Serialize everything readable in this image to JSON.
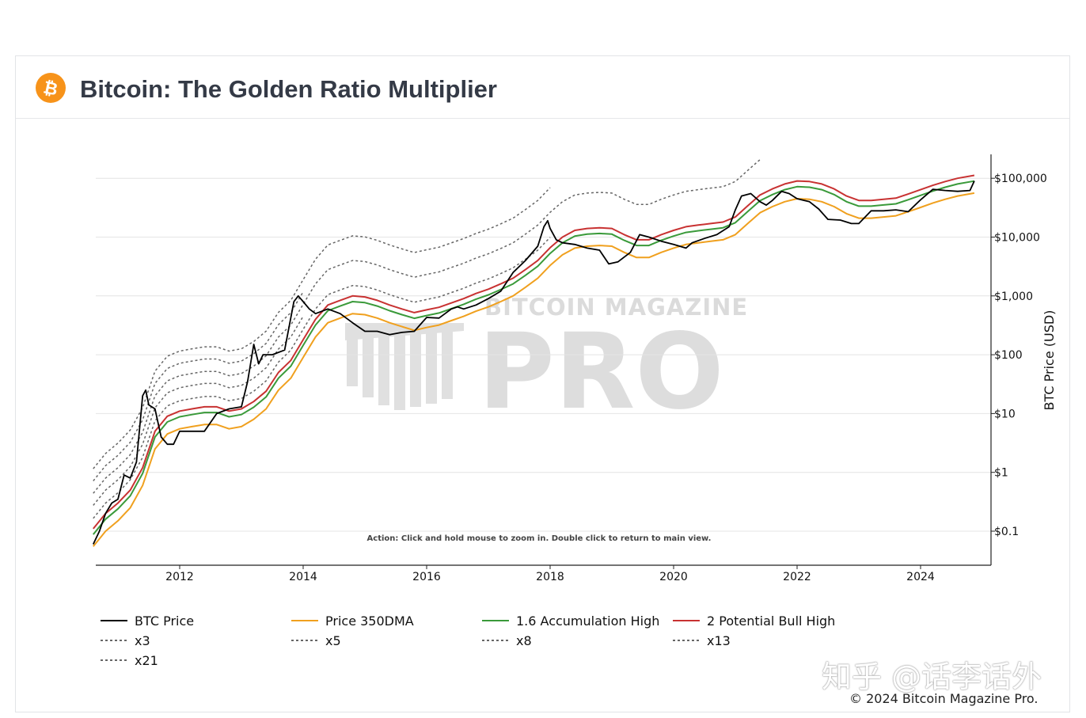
{
  "header": {
    "title": "Bitcoin: The Golden Ratio Multiplier",
    "logo_icon": "bitcoin-logo-icon",
    "logo_color": "#f7931a"
  },
  "hint": "Action: Click and hold mouse to zoom in.  Double click to return to main view.",
  "watermark": {
    "small": "BITCOIN MAGAZINE",
    "big": "PRO"
  },
  "footer": {
    "zhihu": "知乎 @话李话外",
    "copyright": "© 2024 Bitcoin Magazine Pro."
  },
  "chart_data": {
    "type": "line",
    "title": "Bitcoin: The Golden Ratio Multiplier",
    "ylabel": "BTC Price (USD)",
    "xlabel": "",
    "yscale": "log",
    "ylim": [
      0.035,
      300000
    ],
    "xlim": [
      2010.6,
      2024.92
    ],
    "y_ticks": [
      {
        "value": 0.1,
        "label": "$0.1"
      },
      {
        "value": 1,
        "label": "$1"
      },
      {
        "value": 10,
        "label": "$10"
      },
      {
        "value": 100,
        "label": "$100"
      },
      {
        "value": 1000,
        "label": "$1,000"
      },
      {
        "value": 10000,
        "label": "$10,000"
      },
      {
        "value": 100000,
        "label": "$100,000"
      }
    ],
    "x_ticks": [
      {
        "value": 2012,
        "label": "2012"
      },
      {
        "value": 2014,
        "label": "2014"
      },
      {
        "value": 2016,
        "label": "2016"
      },
      {
        "value": 2018,
        "label": "2018"
      },
      {
        "value": 2020,
        "label": "2020"
      },
      {
        "value": 2022,
        "label": "2022"
      },
      {
        "value": 2024,
        "label": "2024"
      }
    ],
    "grid": "horizontal",
    "legend_position": "bottom",
    "series": [
      {
        "name": "BTC Price",
        "color": "#000000",
        "dash": "solid",
        "x": [
          2010.6,
          2010.7,
          2010.8,
          2010.9,
          2011.0,
          2011.1,
          2011.2,
          2011.3,
          2011.4,
          2011.45,
          2011.5,
          2011.6,
          2011.7,
          2011.8,
          2011.9,
          2012.0,
          2012.2,
          2012.4,
          2012.6,
          2012.8,
          2013.0,
          2013.1,
          2013.2,
          2013.28,
          2013.35,
          2013.5,
          2013.7,
          2013.85,
          2013.92,
          2014.0,
          2014.1,
          2014.2,
          2014.4,
          2014.6,
          2014.8,
          2015.0,
          2015.2,
          2015.4,
          2015.6,
          2015.8,
          2016.0,
          2016.2,
          2016.4,
          2016.5,
          2016.6,
          2016.8,
          2017.0,
          2017.2,
          2017.4,
          2017.6,
          2017.8,
          2017.9,
          2017.96,
          2018.0,
          2018.1,
          2018.2,
          2018.4,
          2018.6,
          2018.8,
          2018.95,
          2019.1,
          2019.3,
          2019.45,
          2019.6,
          2019.8,
          2020.0,
          2020.2,
          2020.3,
          2020.5,
          2020.7,
          2020.9,
          2021.0,
          2021.1,
          2021.25,
          2021.4,
          2021.5,
          2021.6,
          2021.75,
          2021.87,
          2022.0,
          2022.2,
          2022.35,
          2022.5,
          2022.7,
          2022.88,
          2023.0,
          2023.2,
          2023.4,
          2023.6,
          2023.8,
          2024.0,
          2024.2,
          2024.4,
          2024.6,
          2024.8,
          2024.87
        ],
        "y": [
          0.06,
          0.1,
          0.2,
          0.3,
          0.35,
          0.9,
          0.8,
          1.5,
          20,
          25,
          14,
          12,
          4,
          3,
          3,
          5,
          5,
          5,
          10,
          12,
          13,
          35,
          150,
          70,
          100,
          100,
          120,
          800,
          1000,
          800,
          600,
          500,
          600,
          500,
          350,
          250,
          250,
          220,
          240,
          250,
          430,
          420,
          600,
          650,
          600,
          700,
          900,
          1200,
          2500,
          4000,
          7000,
          15000,
          19000,
          14000,
          9000,
          8000,
          7500,
          6500,
          6000,
          3500,
          3800,
          5500,
          11000,
          10000,
          8500,
          7500,
          6500,
          8000,
          9500,
          11000,
          15000,
          29000,
          50000,
          55000,
          40000,
          35000,
          42000,
          60000,
          55000,
          45000,
          40000,
          30000,
          20000,
          19500,
          17000,
          17000,
          28000,
          28000,
          29000,
          27000,
          43000,
          65000,
          62000,
          60000,
          62000,
          90000
        ]
      },
      {
        "name": "Price 350DMA",
        "color": "#f0a01e",
        "dash": "solid",
        "x": [
          2010.6,
          2010.8,
          2011.0,
          2011.2,
          2011.4,
          2011.6,
          2011.8,
          2012.0,
          2012.2,
          2012.4,
          2012.6,
          2012.8,
          2013.0,
          2013.2,
          2013.4,
          2013.6,
          2013.8,
          2014.0,
          2014.2,
          2014.4,
          2014.6,
          2014.8,
          2015.0,
          2015.2,
          2015.4,
          2015.6,
          2015.8,
          2016.0,
          2016.2,
          2016.4,
          2016.6,
          2016.8,
          2017.0,
          2017.2,
          2017.4,
          2017.6,
          2017.8,
          2018.0,
          2018.2,
          2018.4,
          2018.6,
          2018.8,
          2019.0,
          2019.2,
          2019.4,
          2019.6,
          2019.8,
          2020.0,
          2020.2,
          2020.4,
          2020.6,
          2020.8,
          2021.0,
          2021.2,
          2021.4,
          2021.6,
          2021.8,
          2022.0,
          2022.2,
          2022.4,
          2022.6,
          2022.8,
          2023.0,
          2023.2,
          2023.4,
          2023.6,
          2023.8,
          2024.0,
          2024.2,
          2024.4,
          2024.6,
          2024.87
        ],
        "y": [
          0.055,
          0.1,
          0.15,
          0.25,
          0.6,
          2.5,
          4.5,
          5.5,
          6,
          6.5,
          6.5,
          5.5,
          6,
          8,
          12,
          25,
          40,
          90,
          200,
          350,
          420,
          500,
          480,
          420,
          350,
          300,
          260,
          290,
          320,
          380,
          450,
          550,
          650,
          800,
          1000,
          1400,
          2000,
          3300,
          5000,
          6500,
          7000,
          7200,
          7000,
          5500,
          4500,
          4500,
          5500,
          6500,
          7500,
          8000,
          8500,
          9000,
          11000,
          17000,
          26000,
          33000,
          40000,
          45000,
          44000,
          40000,
          33000,
          25000,
          21000,
          21000,
          22000,
          23000,
          27000,
          32000,
          38000,
          44000,
          50000,
          56000
        ]
      },
      {
        "name": "1.6 Accumulation High",
        "color": "#3a9a3a",
        "dash": "solid",
        "x": [
          2010.6,
          2010.8,
          2011.0,
          2011.2,
          2011.4,
          2011.6,
          2011.8,
          2012.0,
          2012.2,
          2012.4,
          2012.6,
          2012.8,
          2013.0,
          2013.2,
          2013.4,
          2013.6,
          2013.8,
          2014.0,
          2014.2,
          2014.4,
          2014.6,
          2014.8,
          2015.0,
          2015.2,
          2015.4,
          2015.6,
          2015.8,
          2016.0,
          2016.2,
          2016.4,
          2016.6,
          2016.8,
          2017.0,
          2017.2,
          2017.4,
          2017.6,
          2017.8,
          2018.0,
          2018.2,
          2018.4,
          2018.6,
          2018.8,
          2019.0,
          2019.2,
          2019.4,
          2019.6,
          2019.8,
          2020.0,
          2020.2,
          2020.4,
          2020.6,
          2020.8,
          2021.0,
          2021.2,
          2021.4,
          2021.6,
          2021.8,
          2022.0,
          2022.2,
          2022.4,
          2022.6,
          2022.8,
          2023.0,
          2023.2,
          2023.4,
          2023.6,
          2023.8,
          2024.0,
          2024.2,
          2024.4,
          2024.6,
          2024.87
        ],
        "y": [
          0.088,
          0.16,
          0.24,
          0.4,
          0.96,
          4,
          7.2,
          8.8,
          9.6,
          10.4,
          10.4,
          8.8,
          9.6,
          12.8,
          19.2,
          40,
          64,
          144,
          320,
          560,
          672,
          800,
          768,
          672,
          560,
          480,
          416,
          464,
          512,
          608,
          720,
          880,
          1040,
          1280,
          1600,
          2240,
          3200,
          5280,
          8000,
          10400,
          11200,
          11520,
          11200,
          8800,
          7200,
          7200,
          8800,
          10400,
          12000,
          12800,
          13600,
          14400,
          17600,
          27200,
          41600,
          52800,
          64000,
          72000,
          70400,
          64000,
          52800,
          40000,
          33600,
          33600,
          35200,
          36800,
          43200,
          51200,
          60800,
          70400,
          80000,
          89600
        ]
      },
      {
        "name": "2 Potential Bull High",
        "color": "#c83232",
        "dash": "solid",
        "x": [
          2010.6,
          2010.8,
          2011.0,
          2011.2,
          2011.4,
          2011.6,
          2011.8,
          2012.0,
          2012.2,
          2012.4,
          2012.6,
          2012.8,
          2013.0,
          2013.2,
          2013.4,
          2013.6,
          2013.8,
          2014.0,
          2014.2,
          2014.4,
          2014.6,
          2014.8,
          2015.0,
          2015.2,
          2015.4,
          2015.6,
          2015.8,
          2016.0,
          2016.2,
          2016.4,
          2016.6,
          2016.8,
          2017.0,
          2017.2,
          2017.4,
          2017.6,
          2017.8,
          2018.0,
          2018.2,
          2018.4,
          2018.6,
          2018.8,
          2019.0,
          2019.2,
          2019.4,
          2019.6,
          2019.8,
          2020.0,
          2020.2,
          2020.4,
          2020.6,
          2020.8,
          2021.0,
          2021.2,
          2021.4,
          2021.6,
          2021.8,
          2022.0,
          2022.2,
          2022.4,
          2022.6,
          2022.8,
          2023.0,
          2023.2,
          2023.4,
          2023.6,
          2023.8,
          2024.0,
          2024.2,
          2024.4,
          2024.6,
          2024.87
        ],
        "y": [
          0.11,
          0.2,
          0.3,
          0.5,
          1.2,
          5,
          9,
          11,
          12,
          13,
          13,
          11,
          12,
          16,
          24,
          50,
          80,
          180,
          400,
          700,
          840,
          1000,
          960,
          840,
          700,
          600,
          520,
          580,
          640,
          760,
          900,
          1100,
          1300,
          1600,
          2000,
          2800,
          4000,
          6600,
          10000,
          13000,
          14000,
          14400,
          14000,
          11000,
          9000,
          9000,
          11000,
          13000,
          15000,
          16000,
          17000,
          18000,
          22000,
          34000,
          52000,
          66000,
          80000,
          90000,
          88000,
          80000,
          66000,
          50000,
          42000,
          42000,
          44000,
          46000,
          54000,
          64000,
          76000,
          88000,
          100000,
          112000
        ]
      },
      {
        "name": "x3",
        "color": "#666666",
        "dash": "dotted",
        "x": [
          2010.6,
          2010.8,
          2011.0,
          2011.2,
          2011.4,
          2011.6,
          2011.8,
          2012.0,
          2012.2,
          2012.4,
          2012.6,
          2012.8,
          2013.0,
          2013.2,
          2013.4,
          2013.6,
          2013.8,
          2014.0,
          2014.2,
          2014.4,
          2014.6,
          2014.8,
          2015.0,
          2015.2,
          2015.4,
          2015.6,
          2015.8,
          2016.0,
          2016.2,
          2016.4,
          2016.6,
          2016.8,
          2017.0,
          2017.2,
          2017.4,
          2017.6,
          2017.8,
          2018.0
        ],
        "y": [
          0.165,
          0.3,
          0.45,
          0.75,
          1.8,
          7.5,
          13.5,
          16.5,
          18,
          19.5,
          19.5,
          16.5,
          18,
          24,
          36,
          75,
          120,
          270,
          600,
          1050,
          1260,
          1500,
          1440,
          1260,
          1050,
          900,
          780,
          870,
          960,
          1140,
          1350,
          1650,
          1950,
          2400,
          3000,
          4200,
          6000,
          9900
        ]
      },
      {
        "name": "x5",
        "color": "#666666",
        "dash": "dotted",
        "x": [
          2010.6,
          2010.8,
          2011.0,
          2011.2,
          2011.4,
          2011.6,
          2011.8,
          2012.0,
          2012.2,
          2012.4,
          2012.6,
          2012.8,
          2013.0,
          2013.2,
          2013.4,
          2013.6,
          2013.8,
          2014.0
        ],
        "y": [
          0.275,
          0.5,
          0.75,
          1.25,
          3,
          12.5,
          22.5,
          27.5,
          30,
          32.5,
          32.5,
          27.5,
          30,
          40,
          60,
          125,
          200,
          450
        ]
      },
      {
        "name": "x8",
        "color": "#666666",
        "dash": "dotted",
        "x": [
          2010.6,
          2010.8,
          2011.0,
          2011.2,
          2011.4,
          2011.6,
          2011.8,
          2012.0,
          2012.2,
          2012.4,
          2012.6,
          2012.8,
          2013.0,
          2013.2,
          2013.4,
          2013.6,
          2013.8,
          2014.0,
          2014.2,
          2014.4,
          2014.6,
          2014.8,
          2015.0,
          2015.2,
          2015.4,
          2015.6,
          2015.8,
          2016.0,
          2016.2,
          2016.4,
          2016.6,
          2016.8,
          2017.0,
          2017.2,
          2017.4,
          2017.6,
          2017.8,
          2018.0,
          2018.2,
          2018.4,
          2018.6,
          2018.8,
          2019.0,
          2019.2,
          2019.4,
          2019.6,
          2019.8,
          2020.0,
          2020.2,
          2020.4,
          2020.6,
          2020.8,
          2021.0,
          2021.2,
          2021.4
        ],
        "y": [
          0.44,
          0.8,
          1.2,
          2,
          4.8,
          20,
          36,
          44,
          48,
          52,
          52,
          44,
          48,
          64,
          96,
          200,
          320,
          720,
          1600,
          2800,
          3360,
          4000,
          3840,
          3360,
          2800,
          2400,
          2080,
          2320,
          2560,
          3040,
          3600,
          4400,
          5200,
          6400,
          8000,
          11200,
          16000,
          26400,
          40000,
          52000,
          56000,
          57600,
          56000,
          44000,
          36000,
          36000,
          44000,
          52000,
          60000,
          64000,
          68000,
          72000,
          88000,
          136000,
          208000
        ]
      },
      {
        "name": "x13",
        "color": "#666666",
        "dash": "dotted",
        "x": [
          2010.6,
          2010.8,
          2011.0,
          2011.2,
          2011.4,
          2011.6,
          2011.8,
          2012.0,
          2012.2,
          2012.4,
          2012.6,
          2012.8,
          2013.0,
          2013.2,
          2013.4,
          2013.6,
          2013.8,
          2014.0
        ],
        "y": [
          0.715,
          1.3,
          1.95,
          3.25,
          7.8,
          32.5,
          58.5,
          71.5,
          78,
          84.5,
          84.5,
          71.5,
          78,
          104,
          156,
          325,
          520,
          1170
        ]
      },
      {
        "name": "x21",
        "color": "#666666",
        "dash": "dotted",
        "x": [
          2010.6,
          2010.8,
          2011.0,
          2011.2,
          2011.4,
          2011.6,
          2011.8,
          2012.0,
          2012.2,
          2012.4,
          2012.6,
          2012.8,
          2013.0,
          2013.2,
          2013.4,
          2013.6,
          2013.8,
          2014.0,
          2014.2,
          2014.4,
          2014.6,
          2014.8,
          2015.0,
          2015.2,
          2015.4,
          2015.6,
          2015.8,
          2016.0,
          2016.2,
          2016.4,
          2016.6,
          2016.8,
          2017.0,
          2017.2,
          2017.4,
          2017.6,
          2017.8,
          2018.0
        ],
        "y": [
          1.155,
          2.1,
          3.15,
          5.25,
          12.6,
          52.5,
          94.5,
          115.5,
          126,
          136.5,
          136.5,
          115.5,
          126,
          168,
          252,
          525,
          840,
          1890,
          4200,
          7350,
          8820,
          10500,
          10080,
          8820,
          7350,
          6300,
          5460,
          6090,
          6720,
          7980,
          9450,
          11550,
          13650,
          16800,
          21000,
          29400,
          42000,
          69300
        ]
      }
    ]
  }
}
